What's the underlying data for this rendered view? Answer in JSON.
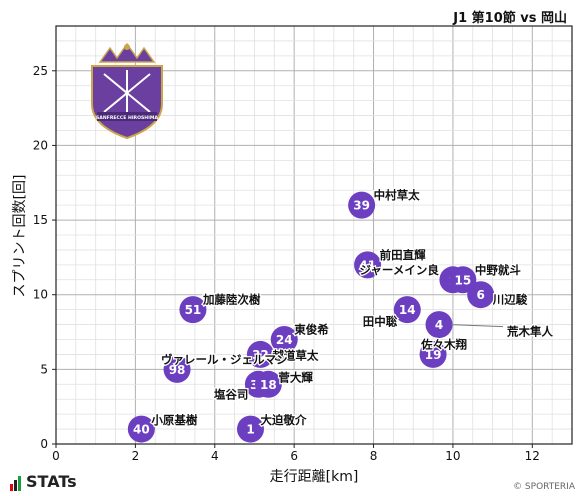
{
  "header": {
    "title": "J1 第10節 vs 岡山"
  },
  "brand": {
    "stats_label": "STATs",
    "copyright": "© SPORTERIA"
  },
  "crest": {
    "club_name": "SANFRECCE HIROSHIMA",
    "color": "#6a3fa0"
  },
  "chart_data": {
    "type": "scatter",
    "xlabel": "走行距離[km]",
    "ylabel": "スプリント回数[回]",
    "xlim": [
      0,
      13
    ],
    "ylim": [
      0,
      28
    ],
    "xticks": [
      0,
      2,
      4,
      6,
      8,
      10,
      12
    ],
    "yticks": [
      0,
      5,
      10,
      15,
      20,
      25
    ],
    "grid": true,
    "marker_color": "#6c3fc0",
    "points": [
      {
        "number": "39",
        "name": "中村草太",
        "x": 7.7,
        "y": 16
      },
      {
        "number": "41",
        "name": "前田直輝",
        "x": 7.85,
        "y": 12
      },
      {
        "number": "9",
        "name": "ジャーメイン良",
        "x": 10.0,
        "y": 11
      },
      {
        "number": "15",
        "name": "中野就斗",
        "x": 10.25,
        "y": 11
      },
      {
        "number": "6",
        "name": "川辺駿",
        "x": 10.7,
        "y": 10
      },
      {
        "number": "14",
        "name": "田中聡",
        "x": 8.85,
        "y": 9
      },
      {
        "number": "4",
        "name": "荒木隼人",
        "x": 9.65,
        "y": 8
      },
      {
        "number": "19",
        "name": "佐々木翔",
        "x": 9.5,
        "y": 6
      },
      {
        "number": "51",
        "name": "加藤陸次樹",
        "x": 3.45,
        "y": 9
      },
      {
        "number": "24",
        "name": "東俊希",
        "x": 5.75,
        "y": 7
      },
      {
        "number": "32",
        "name": "越道草太",
        "x": 5.15,
        "y": 6
      },
      {
        "number": "98",
        "name": "ヴァレール・ジェルマン",
        "x": 3.05,
        "y": 5
      },
      {
        "number": "33",
        "name": "塩谷司",
        "x": 5.1,
        "y": 4
      },
      {
        "number": "18",
        "name": "菅大輝",
        "x": 5.35,
        "y": 4
      },
      {
        "number": "40",
        "name": "小原基樹",
        "x": 2.15,
        "y": 1
      },
      {
        "number": "1",
        "name": "大迫敬介",
        "x": 4.9,
        "y": 1
      }
    ]
  }
}
